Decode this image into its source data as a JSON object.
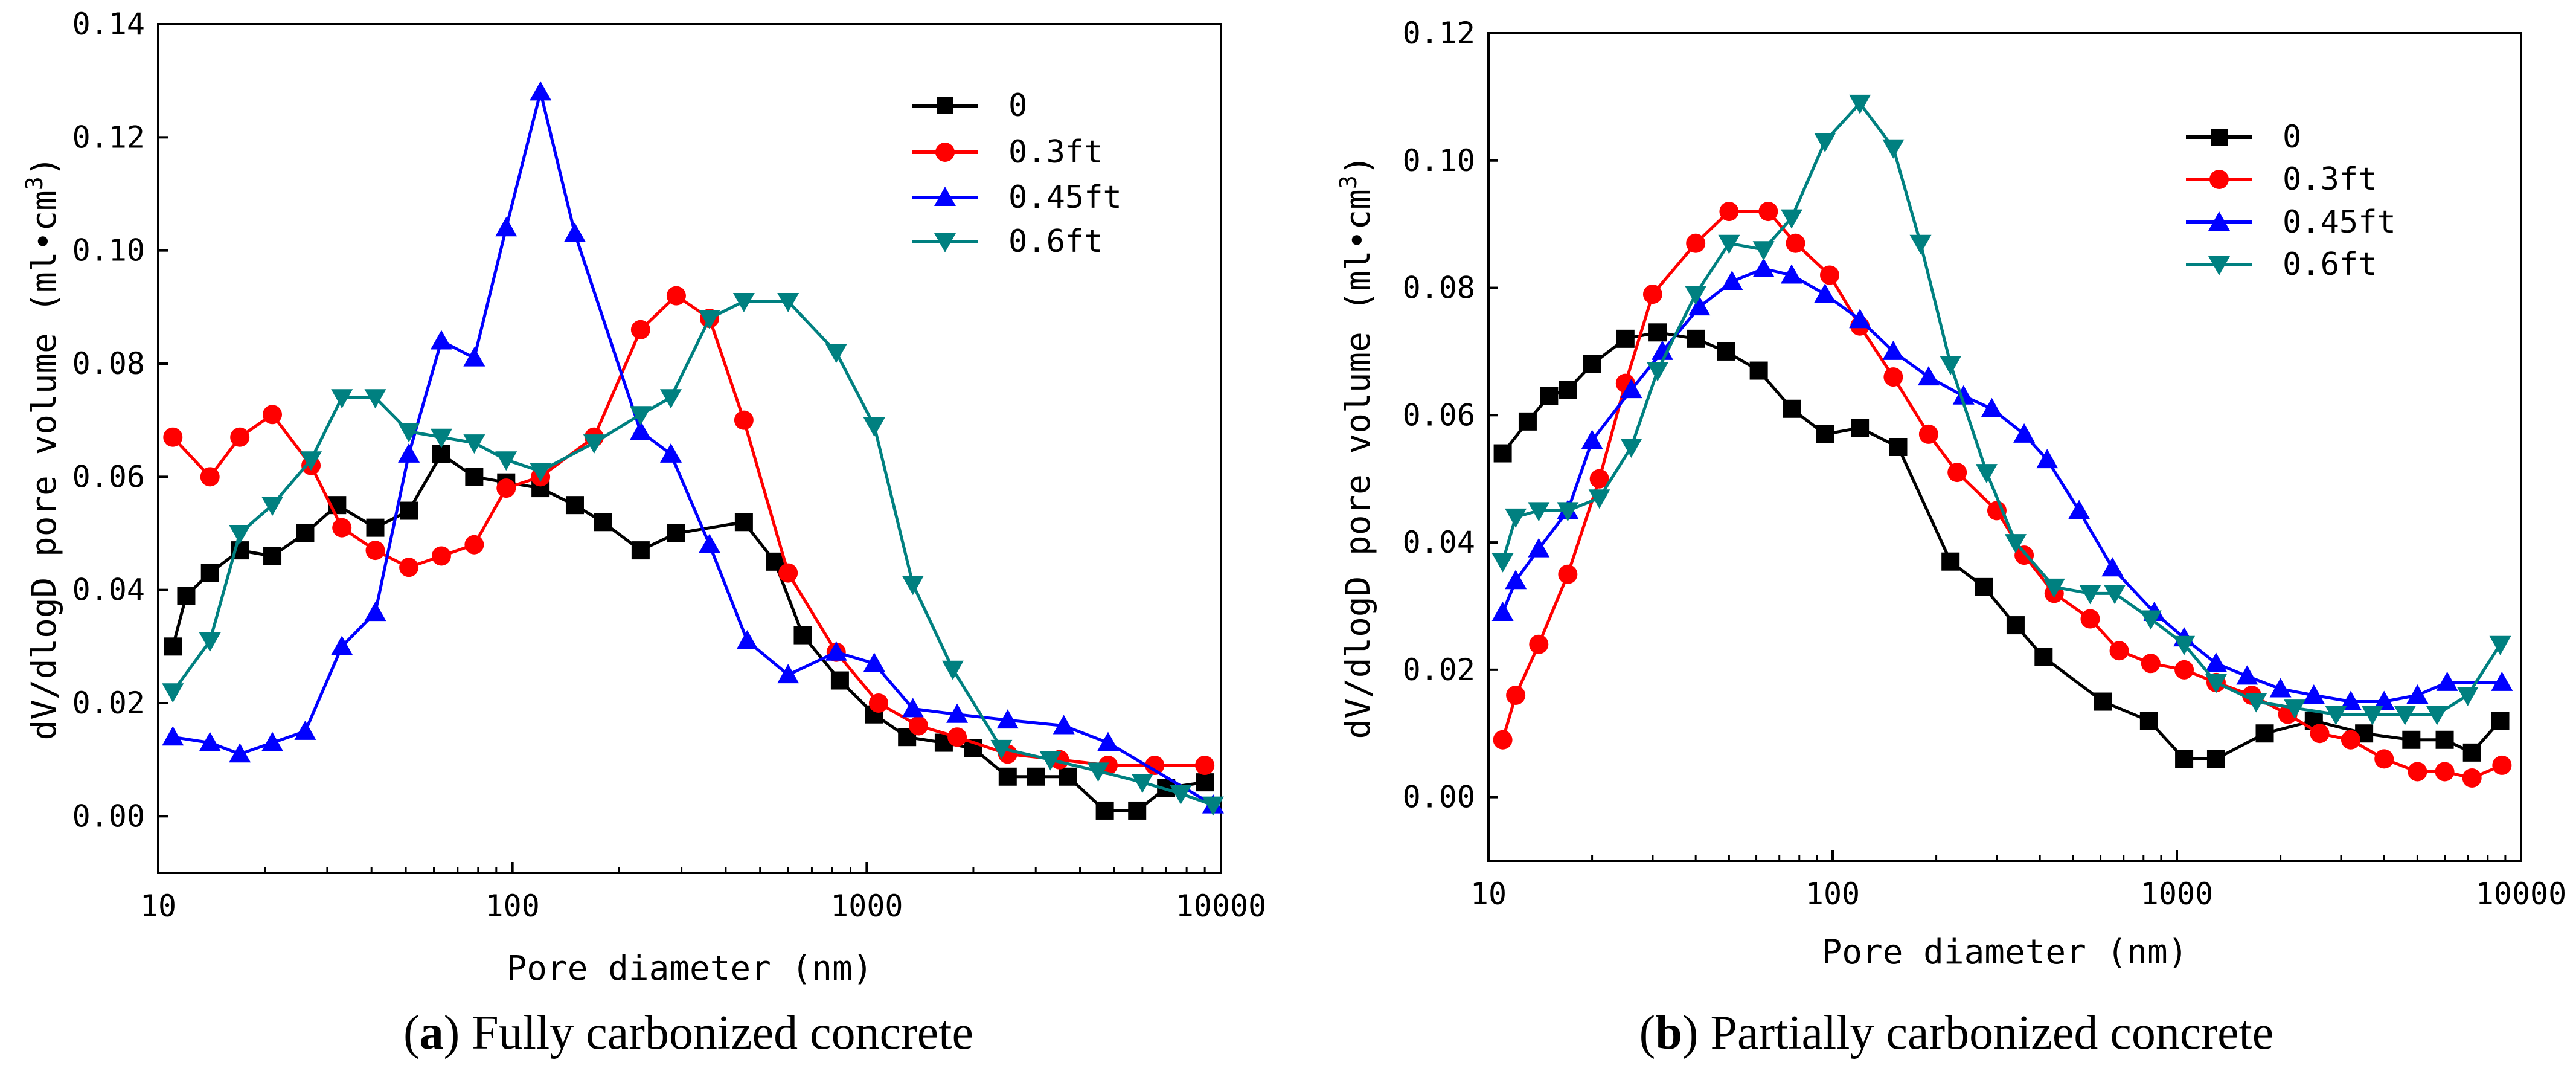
{
  "chart_data": [
    {
      "type": "line",
      "xscale": "log",
      "xlabel": "Pore diameter (nm)",
      "ylabel": "dV/dlogD pore volume (ml•cm",
      "ylabel_sup": "3",
      "ylabel_end": ")",
      "xlim": [
        10,
        10000
      ],
      "ylim": [
        -0.01,
        0.14
      ],
      "xticks": [
        10,
        100,
        1000,
        10000
      ],
      "xtick_labels": [
        "10",
        "100",
        "1000",
        "10000"
      ],
      "yticks": [
        0.0,
        0.02,
        0.04,
        0.06,
        0.08,
        0.1,
        0.12,
        0.14
      ],
      "ytick_labels": [
        "0.00",
        "0.02",
        "0.04",
        "0.06",
        "0.08",
        "0.10",
        "0.12",
        "0.14"
      ],
      "caption_letter": "a",
      "caption_text": "Fully carbonized concrete",
      "legend_position": "top-right",
      "series": [
        {
          "name": "0",
          "color": "#000000",
          "marker": "square",
          "x": [
            11,
            12,
            14,
            17,
            21,
            26,
            32,
            41,
            51,
            63,
            78,
            96,
            120,
            150,
            180,
            230,
            290,
            450,
            550,
            660,
            840,
            1050,
            1300,
            1650,
            2000,
            2500,
            3000,
            3700,
            4700,
            5800,
            7000,
            9000
          ],
          "y": [
            0.03,
            0.039,
            0.043,
            0.047,
            0.046,
            0.05,
            0.055,
            0.051,
            0.054,
            0.064,
            0.06,
            0.059,
            0.058,
            0.055,
            0.052,
            0.047,
            0.05,
            0.052,
            0.045,
            0.032,
            0.024,
            0.018,
            0.014,
            0.013,
            0.012,
            0.007,
            0.007,
            0.007,
            0.001,
            0.001,
            0.005,
            0.006
          ]
        },
        {
          "name": "0.3ft",
          "color": "#ff0000",
          "marker": "circle",
          "x": [
            11,
            14,
            17,
            21,
            27,
            33,
            41,
            51,
            63,
            78,
            96,
            120,
            170,
            230,
            290,
            360,
            450,
            600,
            820,
            1080,
            1400,
            1800,
            2500,
            3500,
            4800,
            6500,
            9000
          ],
          "y": [
            0.067,
            0.06,
            0.067,
            0.071,
            0.062,
            0.051,
            0.047,
            0.044,
            0.046,
            0.048,
            0.058,
            0.06,
            0.067,
            0.086,
            0.092,
            0.088,
            0.07,
            0.043,
            0.029,
            0.02,
            0.016,
            0.014,
            0.011,
            0.01,
            0.009,
            0.009,
            0.009
          ]
        },
        {
          "name": "0.45ft",
          "color": "#0000ff",
          "marker": "triangle-up",
          "x": [
            11,
            14,
            17,
            21,
            26,
            33,
            41,
            51,
            63,
            78,
            96,
            120,
            150,
            230,
            280,
            360,
            460,
            600,
            820,
            1050,
            1350,
            1800,
            2500,
            3600,
            4800,
            9500
          ],
          "y": [
            0.014,
            0.013,
            0.011,
            0.013,
            0.015,
            0.03,
            0.036,
            0.064,
            0.084,
            0.081,
            0.104,
            0.128,
            0.103,
            0.068,
            0.064,
            0.048,
            0.031,
            0.025,
            0.029,
            0.027,
            0.019,
            0.018,
            0.017,
            0.016,
            0.013,
            0.002
          ]
        },
        {
          "name": "0.6ft",
          "color": "#008080",
          "marker": "triangle-down",
          "x": [
            11,
            14,
            17,
            21,
            27,
            33,
            41,
            51,
            63,
            78,
            96,
            120,
            170,
            230,
            280,
            360,
            450,
            600,
            820,
            1050,
            1350,
            1750,
            2400,
            3300,
            4500,
            6000,
            7700,
            9500
          ],
          "y": [
            0.022,
            0.031,
            0.05,
            0.055,
            0.063,
            0.074,
            0.074,
            0.068,
            0.067,
            0.066,
            0.063,
            0.061,
            0.066,
            0.071,
            0.074,
            0.088,
            0.091,
            0.091,
            0.082,
            0.069,
            0.041,
            0.026,
            0.012,
            0.01,
            0.008,
            0.006,
            0.004,
            0.002
          ]
        }
      ]
    },
    {
      "type": "line",
      "xscale": "log",
      "xlabel": "Pore diameter (nm)",
      "ylabel": "dV/dlogD pore volume (ml•cm",
      "ylabel_sup": "3",
      "ylabel_end": ")",
      "xlim": [
        10,
        10000
      ],
      "ylim": [
        -0.01,
        0.12
      ],
      "xticks": [
        10,
        100,
        1000,
        10000
      ],
      "xtick_labels": [
        "10",
        "100",
        "1000",
        "10000"
      ],
      "yticks": [
        0.0,
        0.02,
        0.04,
        0.06,
        0.08,
        0.1,
        0.12
      ],
      "ytick_labels": [
        "0.00",
        "0.02",
        "0.04",
        "0.06",
        "0.08",
        "0.10",
        "0.12"
      ],
      "caption_letter": "b",
      "caption_text": "Partially carbonized concrete",
      "legend_position": "top-right",
      "series": [
        {
          "name": "0",
          "color": "#000000",
          "marker": "square",
          "x": [
            11,
            13,
            15,
            17,
            20,
            25,
            31,
            40,
            49,
            61,
            76,
            95,
            120,
            155,
            220,
            275,
            340,
            410,
            610,
            830,
            1050,
            1300,
            1800,
            2500,
            3500,
            4800,
            6000,
            7200,
            8700
          ],
          "y": [
            0.054,
            0.059,
            0.063,
            0.064,
            0.068,
            0.072,
            0.073,
            0.072,
            0.07,
            0.067,
            0.061,
            0.057,
            0.058,
            0.055,
            0.037,
            0.033,
            0.027,
            0.022,
            0.015,
            0.012,
            0.006,
            0.006,
            0.01,
            0.012,
            0.01,
            0.009,
            0.009,
            0.007,
            0.012
          ]
        },
        {
          "name": "0.3ft",
          "color": "#ff0000",
          "marker": "circle",
          "x": [
            11,
            12,
            14,
            17,
            21,
            25,
            30,
            40,
            50,
            65,
            78,
            98,
            120,
            150,
            190,
            230,
            300,
            360,
            440,
            560,
            680,
            840,
            1050,
            1300,
            1650,
            2100,
            2600,
            3200,
            4000,
            5000,
            6000,
            7200,
            8800
          ],
          "y": [
            0.009,
            0.016,
            0.024,
            0.035,
            0.05,
            0.065,
            0.079,
            0.087,
            0.092,
            0.092,
            0.087,
            0.082,
            0.074,
            0.066,
            0.057,
            0.051,
            0.045,
            0.038,
            0.032,
            0.028,
            0.023,
            0.021,
            0.02,
            0.018,
            0.016,
            0.013,
            0.01,
            0.009,
            0.006,
            0.004,
            0.004,
            0.003,
            0.005
          ]
        },
        {
          "name": "0.45ft",
          "color": "#0000ff",
          "marker": "triangle-up",
          "x": [
            11,
            12,
            14,
            17,
            20,
            26,
            32,
            41,
            51,
            63,
            76,
            95,
            120,
            150,
            190,
            240,
            290,
            360,
            420,
            520,
            650,
            860,
            1050,
            1300,
            1600,
            2000,
            2500,
            3200,
            4000,
            5000,
            6100,
            8800
          ],
          "y": [
            0.029,
            0.034,
            0.039,
            0.045,
            0.056,
            0.064,
            0.07,
            0.077,
            0.081,
            0.083,
            0.082,
            0.079,
            0.075,
            0.07,
            0.066,
            0.063,
            0.061,
            0.057,
            0.053,
            0.045,
            0.036,
            0.029,
            0.025,
            0.021,
            0.019,
            0.017,
            0.016,
            0.015,
            0.015,
            0.016,
            0.018,
            0.018
          ]
        },
        {
          "name": "0.6ft",
          "color": "#008080",
          "marker": "triangle-down",
          "x": [
            11,
            12,
            14,
            17,
            21,
            26,
            31,
            40,
            50,
            63,
            76,
            95,
            120,
            150,
            180,
            220,
            280,
            340,
            440,
            560,
            660,
            840,
            1050,
            1300,
            1700,
            2200,
            2900,
            3700,
            4600,
            5700,
            7000,
            8700
          ],
          "y": [
            0.037,
            0.044,
            0.045,
            0.045,
            0.047,
            0.055,
            0.067,
            0.079,
            0.087,
            0.086,
            0.091,
            0.103,
            0.109,
            0.102,
            0.087,
            0.068,
            0.051,
            0.04,
            0.033,
            0.032,
            0.032,
            0.028,
            0.024,
            0.018,
            0.015,
            0.014,
            0.013,
            0.013,
            0.013,
            0.013,
            0.016,
            0.024
          ]
        }
      ]
    }
  ]
}
